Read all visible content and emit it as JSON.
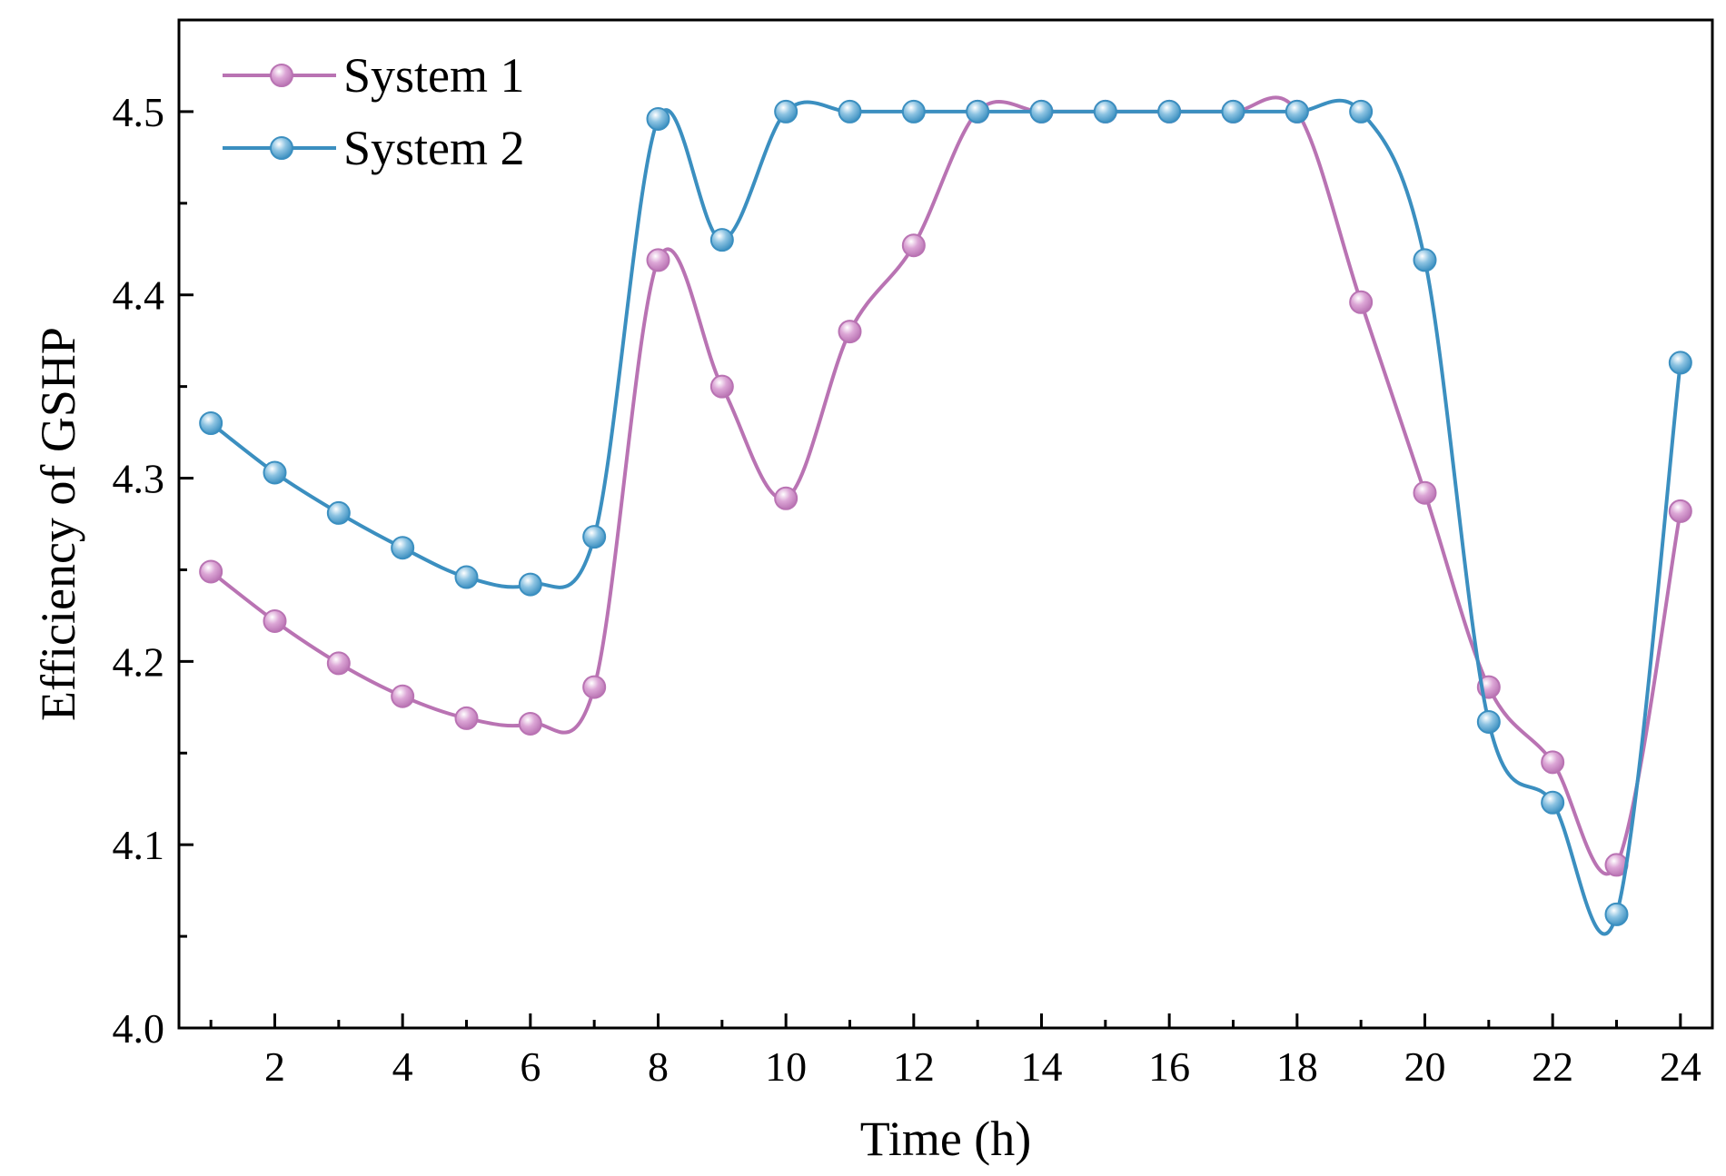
{
  "chart_data": {
    "type": "line",
    "title": "",
    "xlabel": "Time (h)",
    "ylabel": "Efficiency of GSHP",
    "xlim": [
      0.5,
      24.5
    ],
    "ylim": [
      4.0,
      4.55
    ],
    "x_ticks": [
      2,
      4,
      6,
      8,
      10,
      12,
      14,
      16,
      18,
      20,
      22,
      24
    ],
    "x_tick_labels": [
      "2",
      "4",
      "6",
      "8",
      "10",
      "12",
      "14",
      "16",
      "18",
      "20",
      "22",
      "24"
    ],
    "y_ticks": [
      4.0,
      4.1,
      4.2,
      4.3,
      4.4,
      4.5
    ],
    "y_tick_labels": [
      "4.0",
      "4.1",
      "4.2",
      "4.3",
      "4.4",
      "4.5"
    ],
    "grid": false,
    "legend_position": "top-left",
    "x": [
      1,
      2,
      3,
      4,
      5,
      6,
      7,
      8,
      9,
      10,
      11,
      12,
      13,
      14,
      15,
      16,
      17,
      18,
      19,
      20,
      21,
      22,
      23,
      24
    ],
    "series": [
      {
        "name": "System 1",
        "color": "#b973b3",
        "values": [
          4.249,
          4.222,
          4.199,
          4.181,
          4.169,
          4.166,
          4.186,
          4.419,
          4.35,
          4.289,
          4.38,
          4.427,
          4.5,
          4.5,
          4.5,
          4.5,
          4.5,
          4.5,
          4.396,
          4.292,
          4.186,
          4.145,
          4.089,
          4.282
        ]
      },
      {
        "name": "System 2",
        "color": "#3b8fc0",
        "values": [
          4.33,
          4.303,
          4.281,
          4.262,
          4.246,
          4.242,
          4.268,
          4.496,
          4.43,
          4.5,
          4.5,
          4.5,
          4.5,
          4.5,
          4.5,
          4.5,
          4.5,
          4.5,
          4.5,
          4.419,
          4.167,
          4.123,
          4.062,
          4.363
        ]
      }
    ]
  }
}
